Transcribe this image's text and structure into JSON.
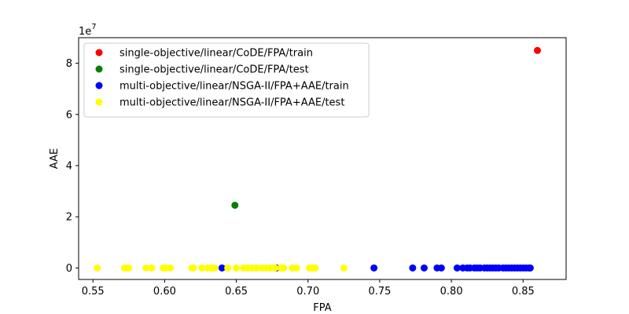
{
  "chart_data": {
    "type": "scatter",
    "xlabel": "FPA",
    "ylabel": "AAE",
    "y_multiplier": "1e7",
    "xlim": [
      0.54,
      0.88
    ],
    "ylim": [
      -0.45,
      9.0
    ],
    "x_ticks": [
      "0.55",
      "0.60",
      "0.65",
      "0.70",
      "0.75",
      "0.80",
      "0.85"
    ],
    "y_ticks": [
      "0",
      "2",
      "4",
      "6",
      "8"
    ],
    "legend_position": "top-left",
    "grid": false,
    "series": [
      {
        "name": "single-objective/linear/CoDE/FPA/train",
        "color": "#ff0000",
        "points": [
          [
            0.86,
            8.5
          ]
        ]
      },
      {
        "name": "single-objective/linear/CoDE/FPA/test",
        "color": "#008000",
        "points": [
          [
            0.649,
            2.45
          ]
        ]
      },
      {
        "name": "multi-objective/linear/NSGA-II/FPA+AAE/train",
        "color": "#0000ff",
        "points": [
          [
            0.64,
            0
          ],
          [
            0.678,
            0
          ],
          [
            0.746,
            0
          ],
          [
            0.773,
            0
          ],
          [
            0.781,
            0
          ],
          [
            0.79,
            0
          ],
          [
            0.793,
            0
          ],
          [
            0.804,
            0
          ],
          [
            0.808,
            0
          ],
          [
            0.811,
            0
          ],
          [
            0.813,
            0
          ],
          [
            0.816,
            0
          ],
          [
            0.818,
            0
          ],
          [
            0.82,
            0
          ],
          [
            0.823,
            0
          ],
          [
            0.825,
            0
          ],
          [
            0.827,
            0
          ],
          [
            0.829,
            0
          ],
          [
            0.831,
            0
          ],
          [
            0.833,
            0
          ],
          [
            0.836,
            0
          ],
          [
            0.838,
            0
          ],
          [
            0.84,
            0
          ],
          [
            0.842,
            0
          ],
          [
            0.844,
            0
          ],
          [
            0.846,
            0
          ],
          [
            0.848,
            0
          ],
          [
            0.85,
            0
          ],
          [
            0.852,
            0
          ],
          [
            0.854,
            0
          ],
          [
            0.855,
            0
          ]
        ]
      },
      {
        "name": "multi-objective/linear/NSGA-II/FPA+AAE/test",
        "color": "#ffff00",
        "points": [
          [
            0.553,
            0
          ],
          [
            0.572,
            0
          ],
          [
            0.574,
            0
          ],
          [
            0.575,
            0
          ],
          [
            0.587,
            0
          ],
          [
            0.591,
            0
          ],
          [
            0.599,
            0
          ],
          [
            0.601,
            0
          ],
          [
            0.604,
            0
          ],
          [
            0.619,
            0
          ],
          [
            0.62,
            0
          ],
          [
            0.626,
            0
          ],
          [
            0.63,
            0
          ],
          [
            0.633,
            0
          ],
          [
            0.635,
            0
          ],
          [
            0.644,
            0
          ],
          [
            0.65,
            0
          ],
          [
            0.655,
            0
          ],
          [
            0.658,
            0
          ],
          [
            0.661,
            0
          ],
          [
            0.664,
            0
          ],
          [
            0.668,
            0
          ],
          [
            0.671,
            0
          ],
          [
            0.674,
            0
          ],
          [
            0.677,
            0
          ],
          [
            0.681,
            0
          ],
          [
            0.683,
            0
          ],
          [
            0.689,
            0
          ],
          [
            0.692,
            0
          ],
          [
            0.701,
            0
          ],
          [
            0.703,
            0
          ],
          [
            0.705,
            0
          ],
          [
            0.725,
            0
          ]
        ]
      }
    ]
  }
}
